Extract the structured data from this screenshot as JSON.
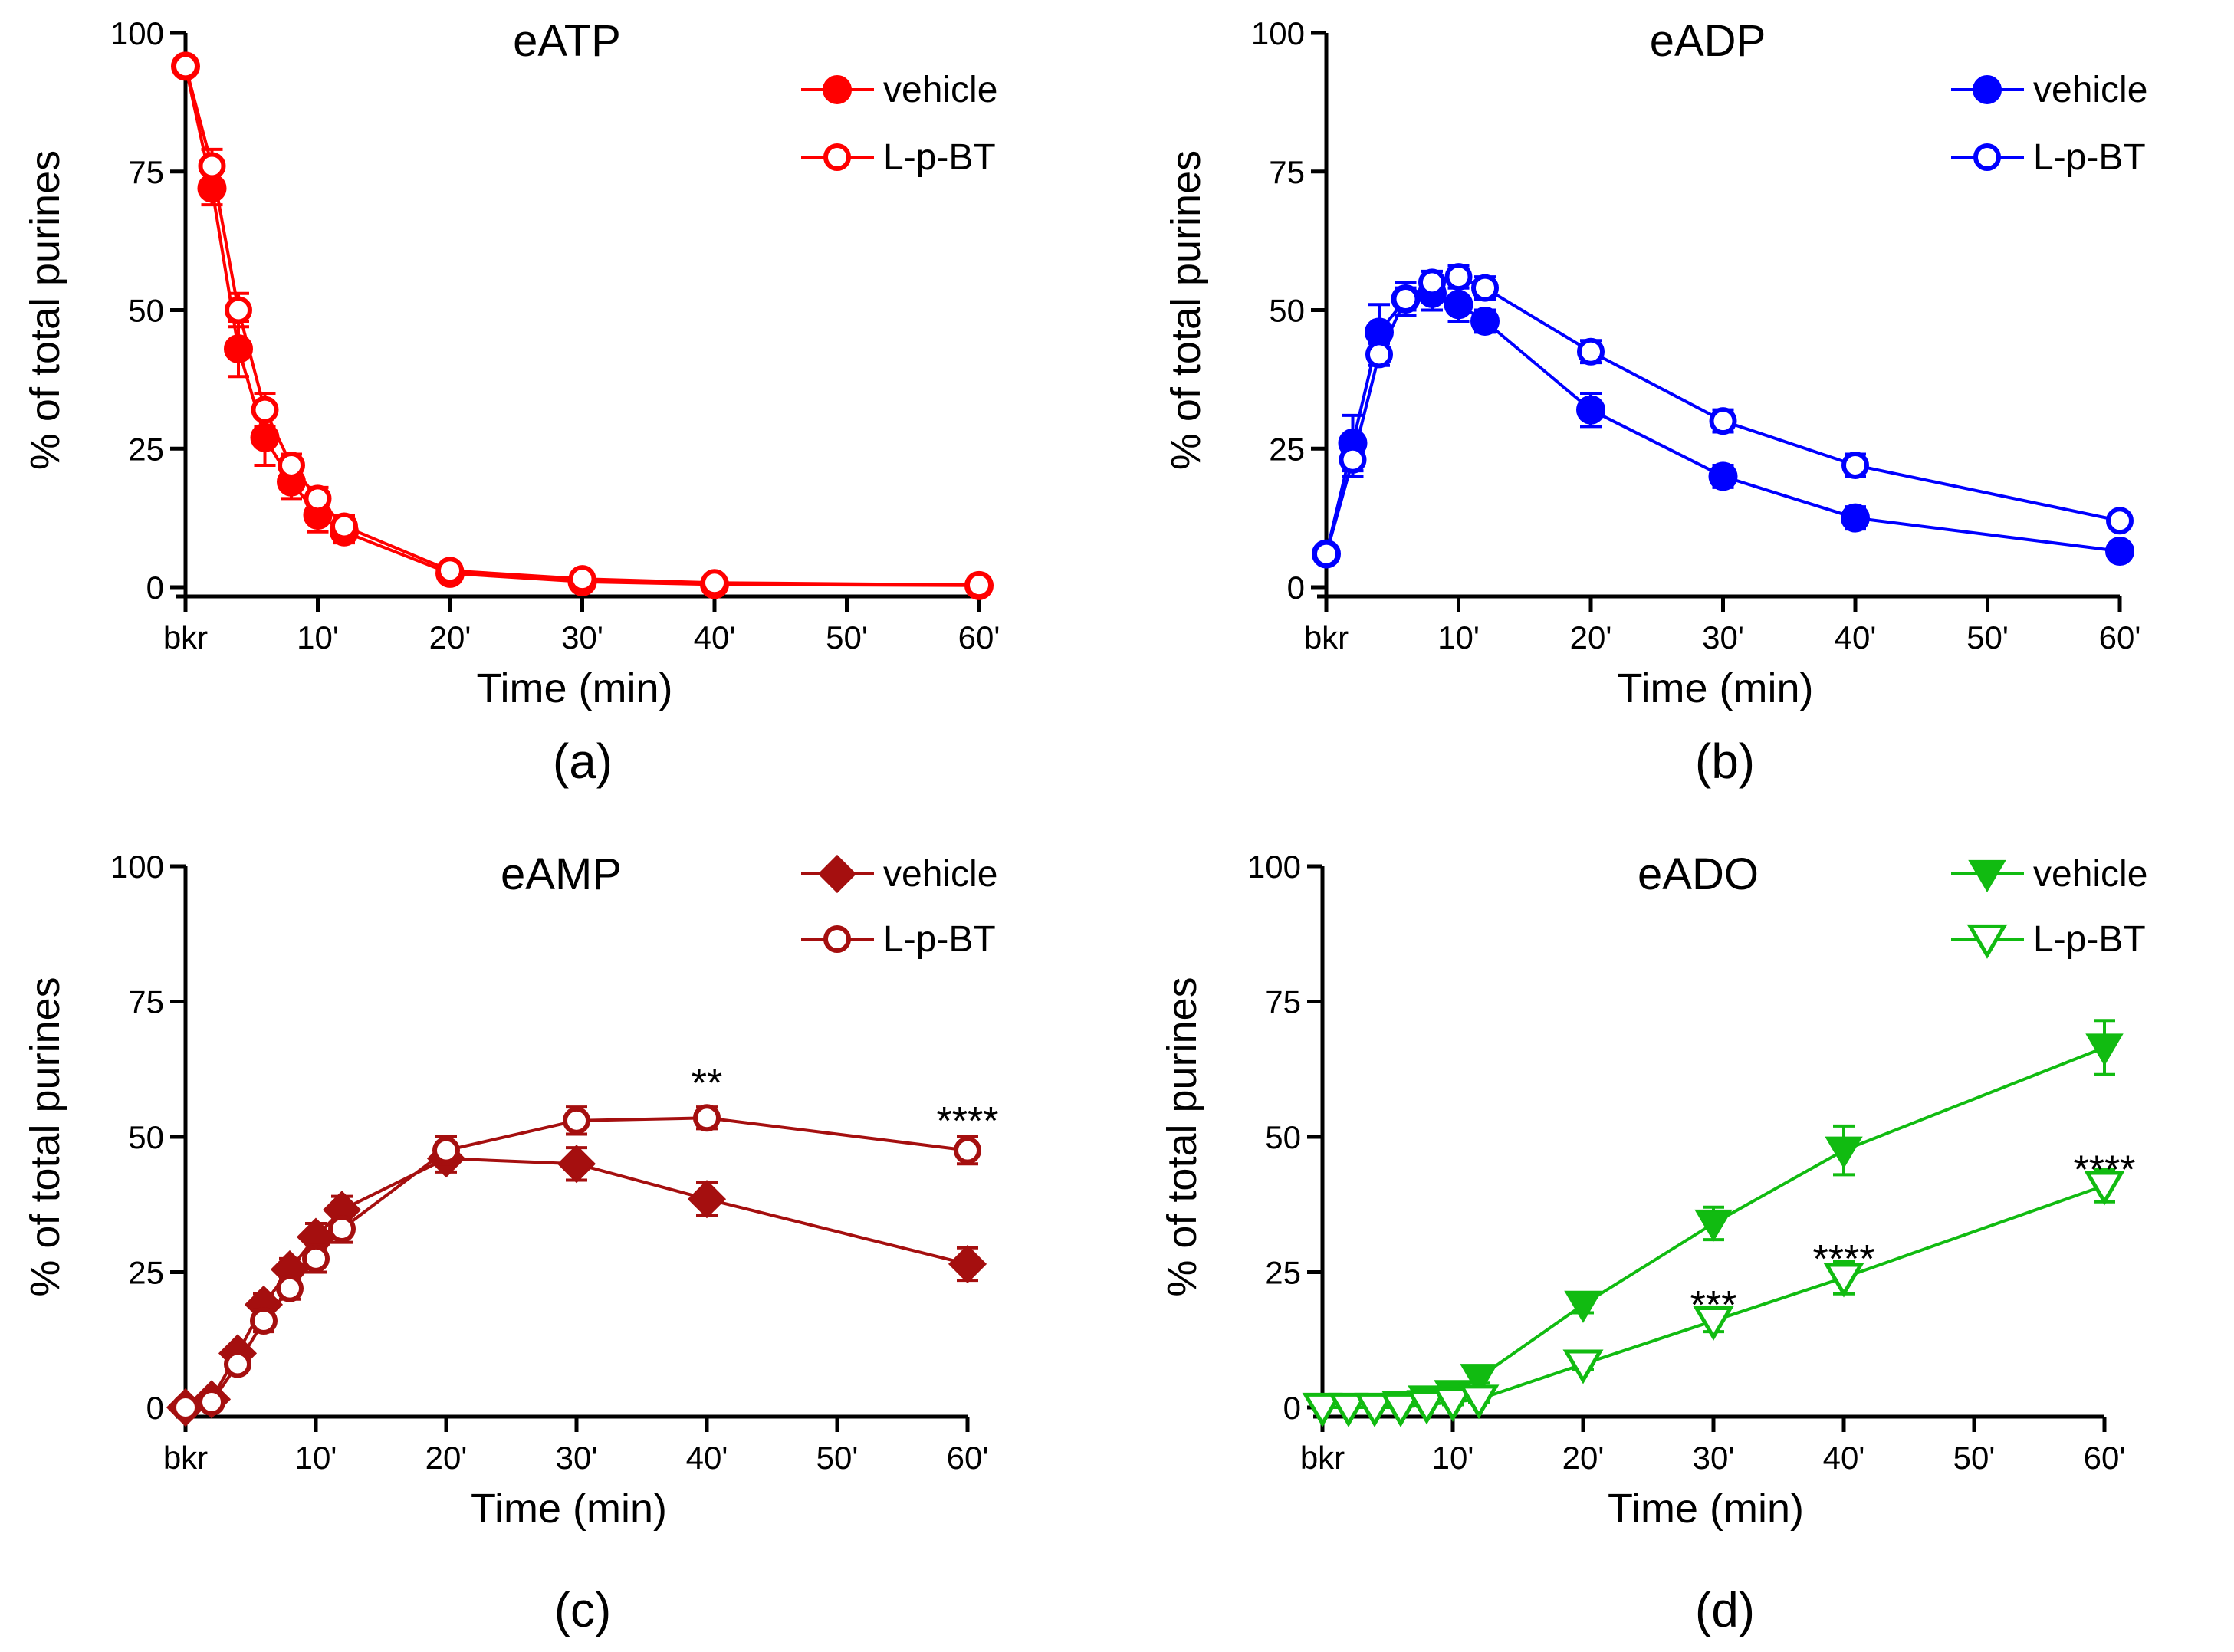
{
  "chart_data": [
    {
      "id": "a",
      "type": "line",
      "title": "eATP",
      "panel_label": "(a)",
      "xlabel": "Time (min)",
      "ylabel": "% of total purines",
      "xlim": [
        0,
        60
      ],
      "ylim": [
        0,
        100
      ],
      "xticks": [
        0,
        10,
        20,
        30,
        40,
        50,
        60
      ],
      "xtick_labels": [
        "bkr",
        "10'",
        "20'",
        "30'",
        "40'",
        "50'",
        "60'"
      ],
      "yticks": [
        0,
        25,
        50,
        75,
        100
      ],
      "ytick_labels": [
        "0",
        "25",
        "50",
        "75",
        "100"
      ],
      "color": "#ff0000",
      "legend_position": "top-right",
      "series": [
        {
          "name": "vehicle",
          "marker": "circle-filled",
          "x": [
            0,
            2,
            4,
            6,
            8,
            10,
            12,
            20,
            30,
            40,
            60
          ],
          "values": [
            94,
            72,
            43,
            27,
            19,
            13,
            10,
            2.5,
            1,
            0.5,
            0.3
          ],
          "errors": [
            0,
            3,
            5,
            5,
            3,
            3,
            2,
            0.5,
            0.3,
            0.2,
            0.1
          ]
        },
        {
          "name": "L-p-BT",
          "marker": "circle-open",
          "x": [
            0,
            2,
            4,
            6,
            8,
            10,
            12,
            20,
            30,
            40,
            60
          ],
          "values": [
            94,
            76,
            50,
            32,
            22,
            16,
            11,
            3,
            1.5,
            0.8,
            0.4
          ],
          "errors": [
            0,
            3,
            3,
            3,
            2,
            2,
            2,
            0.5,
            0.3,
            0.2,
            0.1
          ]
        }
      ],
      "annotations": []
    },
    {
      "id": "b",
      "type": "line",
      "title": "eADP",
      "panel_label": "(b)",
      "xlabel": "Time (min)",
      "ylabel": "% of total purines",
      "xlim": [
        0,
        60
      ],
      "ylim": [
        0,
        100
      ],
      "xticks": [
        0,
        10,
        20,
        30,
        40,
        50,
        60
      ],
      "xtick_labels": [
        "bkr",
        "10'",
        "20'",
        "30'",
        "40'",
        "50'",
        "60'"
      ],
      "yticks": [
        0,
        25,
        50,
        75,
        100
      ],
      "ytick_labels": [
        "0",
        "25",
        "50",
        "75",
        "100"
      ],
      "color": "#0000ff",
      "legend_position": "top-right",
      "series": [
        {
          "name": "vehicle",
          "marker": "circle-filled",
          "x": [
            0,
            2,
            4,
            6,
            8,
            10,
            12,
            20,
            30,
            40,
            60
          ],
          "values": [
            6,
            26,
            46,
            52,
            53,
            51,
            48,
            32,
            20,
            12.5,
            6.5
          ],
          "errors": [
            0,
            5,
            5,
            3,
            3,
            3,
            2,
            3,
            2,
            2,
            1
          ]
        },
        {
          "name": "L-p-BT",
          "marker": "circle-open",
          "x": [
            0,
            2,
            4,
            6,
            8,
            10,
            12,
            20,
            30,
            40,
            60
          ],
          "values": [
            6,
            23,
            42,
            52,
            55,
            56,
            54,
            42.5,
            30,
            22,
            12
          ],
          "errors": [
            0,
            3,
            2,
            2,
            2,
            2,
            2,
            2,
            2,
            2,
            1
          ]
        }
      ],
      "annotations": []
    },
    {
      "id": "c",
      "type": "line",
      "title": "eAMP",
      "panel_label": "(c)",
      "xlabel": "Time (min)",
      "ylabel": "% of total purines",
      "xlim": [
        0,
        60
      ],
      "ylim": [
        0,
        100
      ],
      "xticks": [
        0,
        10,
        20,
        30,
        40,
        50,
        60
      ],
      "xtick_labels": [
        "bkr",
        "10'",
        "20'",
        "30'",
        "40'",
        "50'",
        "60'"
      ],
      "yticks": [
        0,
        25,
        50,
        75,
        100
      ],
      "ytick_labels": [
        "0",
        "25",
        "50",
        "75",
        "100"
      ],
      "color": "#a50f0f",
      "legend_position": "top-right",
      "series": [
        {
          "name": "vehicle",
          "marker": "diamond-filled",
          "x": [
            0,
            2,
            4,
            6,
            8,
            10,
            12,
            20,
            30,
            40,
            60
          ],
          "values": [
            0,
            1.5,
            10,
            19,
            25.5,
            31.5,
            36.5,
            46,
            45,
            38.5,
            26.5
          ],
          "errors": [
            0,
            0.5,
            1,
            2,
            2,
            2.5,
            2.5,
            2.5,
            3,
            3,
            3
          ]
        },
        {
          "name": "L-p-BT",
          "marker": "circle-open",
          "x": [
            0,
            2,
            4,
            6,
            8,
            10,
            12,
            20,
            30,
            40,
            60
          ],
          "values": [
            0,
            1,
            8,
            16,
            22,
            27.5,
            33,
            47.5,
            53,
            53.5,
            47.5
          ],
          "errors": [
            0,
            0.5,
            1,
            2,
            2,
            2.5,
            2.5,
            2.5,
            2.5,
            2,
            2.5
          ]
        }
      ],
      "annotations": [
        {
          "text": "**",
          "x": 40,
          "y": 60
        },
        {
          "text": "****",
          "x": 60,
          "y": 53
        }
      ]
    },
    {
      "id": "d",
      "type": "line",
      "title": "eADO",
      "panel_label": "(d)",
      "xlabel": "Time (min)",
      "ylabel": "% of total purines",
      "xlim": [
        0,
        60
      ],
      "ylim": [
        0,
        100
      ],
      "xticks": [
        0,
        10,
        20,
        30,
        40,
        50,
        60
      ],
      "xtick_labels": [
        "bkr",
        "10'",
        "20'",
        "30'",
        "40'",
        "50'",
        "60'"
      ],
      "yticks": [
        0,
        25,
        50,
        75,
        100
      ],
      "ytick_labels": [
        "0",
        "25",
        "50",
        "75",
        "100"
      ],
      "color": "#11bb11",
      "legend_position": "top-right",
      "series": [
        {
          "name": "vehicle",
          "marker": "triangle-down-filled",
          "x": [
            0,
            2,
            4,
            6,
            8,
            10,
            12,
            20,
            30,
            40,
            60
          ],
          "values": [
            0,
            0,
            0,
            0.5,
            1.5,
            2.5,
            5.5,
            19,
            34,
            47.5,
            66.5
          ],
          "errors": [
            0,
            0,
            0,
            0.3,
            0.5,
            0.5,
            1,
            1.5,
            3,
            4.5,
            5
          ]
        },
        {
          "name": "L-p-BT",
          "marker": "triangle-down-open",
          "x": [
            0,
            2,
            4,
            6,
            8,
            10,
            12,
            20,
            30,
            40,
            60
          ],
          "values": [
            0,
            0,
            0,
            0,
            0.5,
            1,
            1.5,
            8,
            16,
            24,
            41
          ],
          "errors": [
            0,
            0,
            0,
            0,
            0.3,
            0.5,
            0.5,
            1,
            2,
            3,
            3
          ]
        }
      ],
      "annotations": [
        {
          "text": "***",
          "x": 30,
          "y": 19
        },
        {
          "text": "****",
          "x": 40,
          "y": 27.5
        },
        {
          "text": "****",
          "x": 60,
          "y": 44
        }
      ]
    }
  ]
}
